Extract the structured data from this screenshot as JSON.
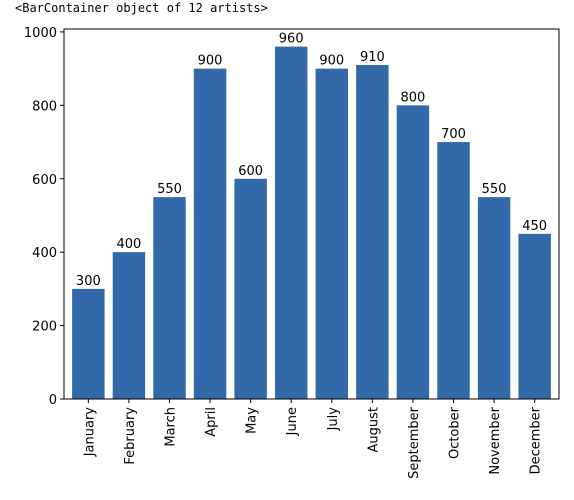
{
  "output": {
    "repr_text": "<BarContainer object of 12 artists>"
  },
  "colors": {
    "bar": "#3169a9",
    "axis": "#000000",
    "background": "#ffffff"
  },
  "chart_data": {
    "type": "bar",
    "title": "",
    "xlabel": "",
    "ylabel": "",
    "categories": [
      "January",
      "February",
      "March",
      "April",
      "May",
      "June",
      "July",
      "August",
      "September",
      "October",
      "November",
      "December"
    ],
    "values": [
      300,
      400,
      550,
      900,
      600,
      960,
      900,
      910,
      800,
      700,
      550,
      450
    ],
    "ylim": [
      0,
      1008
    ],
    "yticks": [
      0,
      200,
      400,
      600,
      800,
      1000
    ],
    "data_labels": [
      "300",
      "400",
      "550",
      "900",
      "600",
      "960",
      "900",
      "910",
      "800",
      "700",
      "550",
      "450"
    ],
    "grid": false,
    "legend": "none"
  }
}
